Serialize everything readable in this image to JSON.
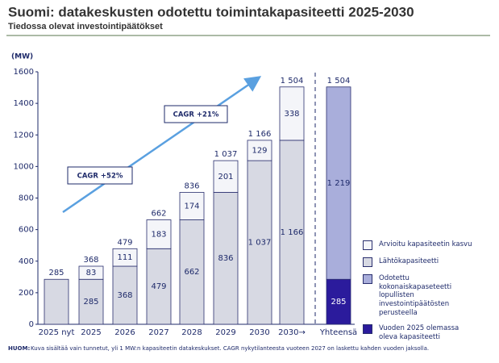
{
  "chart_data": {
    "type": "bar",
    "title": "Suomi: datakeskusten odotettu toimintakapasiteetti 2025-2030",
    "subtitle": "Tiedossa olevat investointipäätökset",
    "y_axis_label": "(MW)",
    "categories": [
      "2025 nyt",
      "2025",
      "2026",
      "2027",
      "2028",
      "2029",
      "2030",
      "2030→",
      "Yhteensä"
    ],
    "series": [
      {
        "name": "Arvioitu kapasiteetin kasvu",
        "color": "#f4f5f9",
        "values": [
          null,
          83,
          111,
          183,
          174,
          201,
          129,
          338,
          null
        ],
        "value_labels": [
          null,
          "83",
          "111",
          "183",
          "174",
          "201",
          "129",
          "338",
          null
        ]
      },
      {
        "name": "Lähtökapasiteetti",
        "color": "#d7d9e3",
        "values": [
          285,
          285,
          368,
          479,
          662,
          836,
          1037,
          1166,
          null
        ],
        "value_labels": [
          null,
          "285",
          "368",
          "479",
          "662",
          "836",
          "1 037",
          "1 166",
          null
        ]
      },
      {
        "name": "Odotettu kokonaiskapaseteetti lopullisten investointipäätösten perusteella",
        "color": "#a9aedb",
        "values": [
          null,
          null,
          null,
          null,
          null,
          null,
          null,
          null,
          1219
        ],
        "value_labels": [
          null,
          null,
          null,
          null,
          null,
          null,
          null,
          null,
          "1 219"
        ]
      },
      {
        "name": "Vuoden 2025 olemassa oleva kapasiteetti",
        "color": "#2b1b9c",
        "values": [
          null,
          null,
          null,
          null,
          null,
          null,
          null,
          null,
          285
        ],
        "value_labels": [
          null,
          null,
          null,
          null,
          null,
          null,
          null,
          null,
          "285"
        ]
      }
    ],
    "totals": {
      "values": [
        285,
        368,
        479,
        662,
        836,
        1037,
        1166,
        1504,
        1504
      ],
      "value_labels": [
        "285",
        "368",
        "479",
        "662",
        "836",
        "1 037",
        "1 166",
        "1 504",
        "1 504"
      ]
    },
    "annotations": [
      "CAGR +52%",
      "CAGR +21%"
    ],
    "ylim": [
      0,
      1600
    ],
    "yticks": [
      0,
      200,
      400,
      600,
      800,
      1000,
      1200,
      1400,
      1600
    ],
    "note_label": "HUOM:",
    "note": "Kuva sisältää vain tunnetut, yli 1 MW:n kapasiteetin datakeskukset. CAGR nykytilanteesta vuoteen 2027 on laskettu kahden vuoden jaksolla."
  }
}
